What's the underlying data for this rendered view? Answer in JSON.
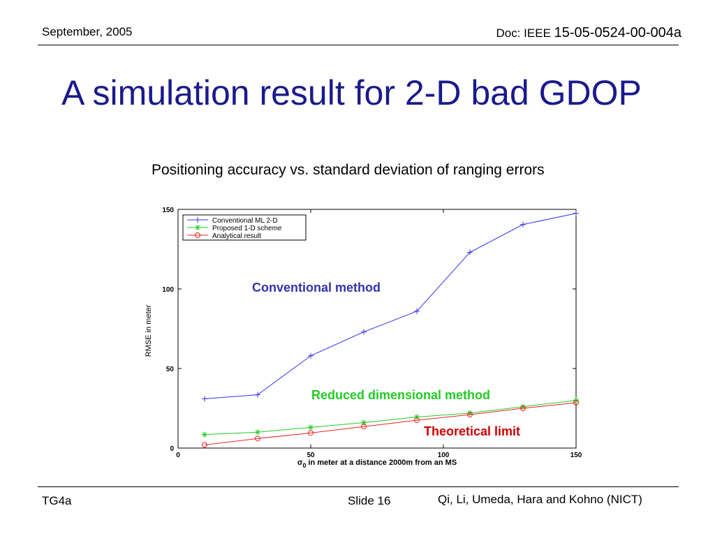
{
  "header": {
    "date": "September, 2005",
    "doc_prefix": "Doc: IEEE ",
    "doc_number": "15-05-0524-00-004a"
  },
  "slide": {
    "title": "A simulation result for 2-D bad GDOP",
    "subtitle": "Positioning accuracy vs. standard deviation of ranging errors"
  },
  "chart_data": {
    "type": "line",
    "x": [
      10,
      30,
      50,
      70,
      90,
      110,
      130,
      150
    ],
    "series": [
      {
        "name": "Conventional ML 2-D",
        "color": "#3333ee",
        "marker": "plus",
        "values": [
          31,
          33.5,
          58,
          73,
          86,
          123,
          140.5,
          147.5
        ]
      },
      {
        "name": "Proposed 1-D scheme",
        "color": "#22cc22",
        "marker": "star",
        "values": [
          8.5,
          10,
          13,
          16,
          19.5,
          22,
          26,
          30
        ]
      },
      {
        "name": "Analytical result",
        "color": "#ee2222",
        "marker": "circle",
        "values": [
          2,
          6,
          9.5,
          13.5,
          17.5,
          21,
          25,
          28.5
        ]
      }
    ],
    "xlim": [
      0,
      150
    ],
    "ylim": [
      0,
      150
    ],
    "xticks": [
      0,
      50,
      100,
      150
    ],
    "yticks": [
      0,
      50,
      100,
      150
    ],
    "xlabel_sigma": "σ",
    "xlabel_sub": "0",
    "xlabel_rest": " in meter at a distance 2000m from an MS",
    "ylabel": "RMSE in meter",
    "legend_position": "top-left",
    "grid": false,
    "annotations": [
      {
        "text": "Conventional method",
        "color": "#3333aa"
      },
      {
        "text": "Reduced dimensional method",
        "color": "#22cc22"
      },
      {
        "text": "Theoretical limit",
        "color": "#cc0000"
      }
    ]
  },
  "footer": {
    "left": "TG4a",
    "slide_label": "Slide 16",
    "authors": "Qi, Li, Umeda, Hara and Kohno (NICT)"
  }
}
